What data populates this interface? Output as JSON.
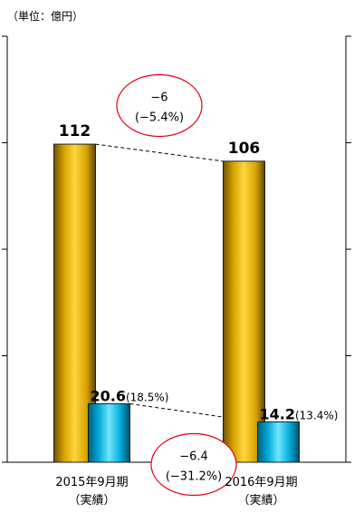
{
  "chart_data": {
    "type": "bar",
    "unit_label": "（単位：億円）",
    "categories": [
      {
        "line1": "2015年9月期",
        "line2": "（実績）"
      },
      {
        "line1": "2016年9月期",
        "line2": "（実績）"
      }
    ],
    "ylim": [
      0,
      150
    ],
    "grid": false,
    "series": [
      {
        "values": [
          112,
          106
        ],
        "color": "#f0b400",
        "labels": [
          {
            "value": "112",
            "suffix": ""
          },
          {
            "value": "106",
            "suffix": ""
          }
        ]
      },
      {
        "values": [
          20.6,
          14.2
        ],
        "color": "#00b4e6",
        "labels": [
          {
            "value": "20.6",
            "suffix": "(18.5%)"
          },
          {
            "value": "14.2",
            "suffix": "(13.4%)"
          }
        ]
      }
    ],
    "annotations": [
      {
        "series": 0,
        "line1": "−6",
        "line2": "(−5.4%)"
      },
      {
        "series": 1,
        "line1": "−6.4",
        "line2": "(−31.2%)"
      }
    ]
  }
}
